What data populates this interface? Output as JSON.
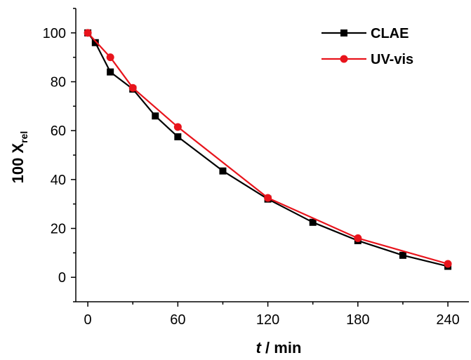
{
  "chart_data": {
    "type": "line",
    "xlabel": {
      "italic": "t",
      "rest": " / min"
    },
    "ylabel": {
      "main": "100 X",
      "sub": "rel"
    },
    "xlim": [
      -8,
      254
    ],
    "ylim": [
      -10,
      110
    ],
    "xticks": [
      0,
      60,
      120,
      180,
      240
    ],
    "yticks": [
      0,
      20,
      40,
      60,
      80,
      100
    ],
    "legend_position": "top-right",
    "grid": false,
    "series": [
      {
        "name": "CLAE",
        "color": "#000000",
        "marker": "square",
        "x": [
          0,
          5,
          15,
          30,
          45,
          60,
          90,
          120,
          150,
          180,
          210,
          240
        ],
        "y": [
          100,
          96,
          84,
          77,
          66,
          57.5,
          43.5,
          32,
          22.5,
          15,
          9,
          4.5
        ]
      },
      {
        "name": "UV-vis",
        "color": "#e8141c",
        "marker": "circle",
        "x": [
          0,
          15,
          30,
          60,
          120,
          180,
          240
        ],
        "y": [
          100,
          90,
          77.5,
          61.5,
          32.5,
          16,
          5.5
        ]
      }
    ]
  }
}
